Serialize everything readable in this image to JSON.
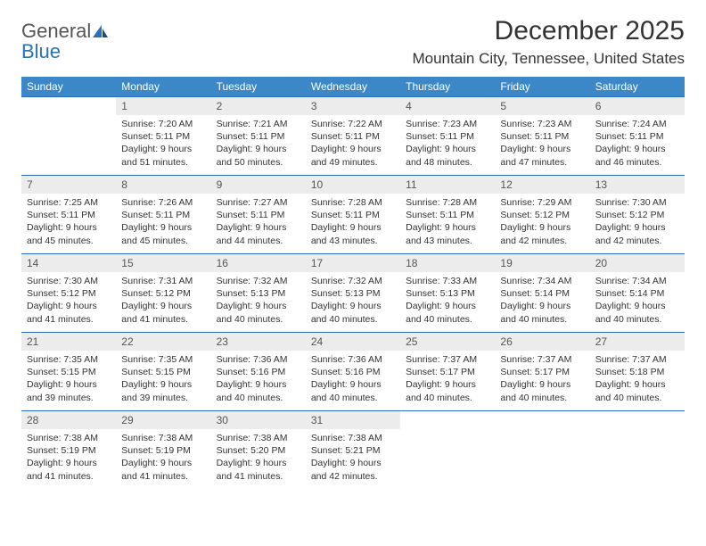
{
  "logo": {
    "text_gray": "General",
    "text_blue": "Blue"
  },
  "title": "December 2025",
  "location": "Mountain City, Tennessee, United States",
  "colors": {
    "header_bg": "#3b87c8",
    "daynum_bg": "#ececec",
    "border": "#2970b8",
    "logo_blue": "#2970b8"
  },
  "day_headers": [
    "Sunday",
    "Monday",
    "Tuesday",
    "Wednesday",
    "Thursday",
    "Friday",
    "Saturday"
  ],
  "weeks": [
    [
      {
        "n": "",
        "sunrise": "",
        "sunset": "",
        "daylight": ""
      },
      {
        "n": "1",
        "sunrise": "Sunrise: 7:20 AM",
        "sunset": "Sunset: 5:11 PM",
        "daylight": "Daylight: 9 hours and 51 minutes."
      },
      {
        "n": "2",
        "sunrise": "Sunrise: 7:21 AM",
        "sunset": "Sunset: 5:11 PM",
        "daylight": "Daylight: 9 hours and 50 minutes."
      },
      {
        "n": "3",
        "sunrise": "Sunrise: 7:22 AM",
        "sunset": "Sunset: 5:11 PM",
        "daylight": "Daylight: 9 hours and 49 minutes."
      },
      {
        "n": "4",
        "sunrise": "Sunrise: 7:23 AM",
        "sunset": "Sunset: 5:11 PM",
        "daylight": "Daylight: 9 hours and 48 minutes."
      },
      {
        "n": "5",
        "sunrise": "Sunrise: 7:23 AM",
        "sunset": "Sunset: 5:11 PM",
        "daylight": "Daylight: 9 hours and 47 minutes."
      },
      {
        "n": "6",
        "sunrise": "Sunrise: 7:24 AM",
        "sunset": "Sunset: 5:11 PM",
        "daylight": "Daylight: 9 hours and 46 minutes."
      }
    ],
    [
      {
        "n": "7",
        "sunrise": "Sunrise: 7:25 AM",
        "sunset": "Sunset: 5:11 PM",
        "daylight": "Daylight: 9 hours and 45 minutes."
      },
      {
        "n": "8",
        "sunrise": "Sunrise: 7:26 AM",
        "sunset": "Sunset: 5:11 PM",
        "daylight": "Daylight: 9 hours and 45 minutes."
      },
      {
        "n": "9",
        "sunrise": "Sunrise: 7:27 AM",
        "sunset": "Sunset: 5:11 PM",
        "daylight": "Daylight: 9 hours and 44 minutes."
      },
      {
        "n": "10",
        "sunrise": "Sunrise: 7:28 AM",
        "sunset": "Sunset: 5:11 PM",
        "daylight": "Daylight: 9 hours and 43 minutes."
      },
      {
        "n": "11",
        "sunrise": "Sunrise: 7:28 AM",
        "sunset": "Sunset: 5:11 PM",
        "daylight": "Daylight: 9 hours and 43 minutes."
      },
      {
        "n": "12",
        "sunrise": "Sunrise: 7:29 AM",
        "sunset": "Sunset: 5:12 PM",
        "daylight": "Daylight: 9 hours and 42 minutes."
      },
      {
        "n": "13",
        "sunrise": "Sunrise: 7:30 AM",
        "sunset": "Sunset: 5:12 PM",
        "daylight": "Daylight: 9 hours and 42 minutes."
      }
    ],
    [
      {
        "n": "14",
        "sunrise": "Sunrise: 7:30 AM",
        "sunset": "Sunset: 5:12 PM",
        "daylight": "Daylight: 9 hours and 41 minutes."
      },
      {
        "n": "15",
        "sunrise": "Sunrise: 7:31 AM",
        "sunset": "Sunset: 5:12 PM",
        "daylight": "Daylight: 9 hours and 41 minutes."
      },
      {
        "n": "16",
        "sunrise": "Sunrise: 7:32 AM",
        "sunset": "Sunset: 5:13 PM",
        "daylight": "Daylight: 9 hours and 40 minutes."
      },
      {
        "n": "17",
        "sunrise": "Sunrise: 7:32 AM",
        "sunset": "Sunset: 5:13 PM",
        "daylight": "Daylight: 9 hours and 40 minutes."
      },
      {
        "n": "18",
        "sunrise": "Sunrise: 7:33 AM",
        "sunset": "Sunset: 5:13 PM",
        "daylight": "Daylight: 9 hours and 40 minutes."
      },
      {
        "n": "19",
        "sunrise": "Sunrise: 7:34 AM",
        "sunset": "Sunset: 5:14 PM",
        "daylight": "Daylight: 9 hours and 40 minutes."
      },
      {
        "n": "20",
        "sunrise": "Sunrise: 7:34 AM",
        "sunset": "Sunset: 5:14 PM",
        "daylight": "Daylight: 9 hours and 40 minutes."
      }
    ],
    [
      {
        "n": "21",
        "sunrise": "Sunrise: 7:35 AM",
        "sunset": "Sunset: 5:15 PM",
        "daylight": "Daylight: 9 hours and 39 minutes."
      },
      {
        "n": "22",
        "sunrise": "Sunrise: 7:35 AM",
        "sunset": "Sunset: 5:15 PM",
        "daylight": "Daylight: 9 hours and 39 minutes."
      },
      {
        "n": "23",
        "sunrise": "Sunrise: 7:36 AM",
        "sunset": "Sunset: 5:16 PM",
        "daylight": "Daylight: 9 hours and 40 minutes."
      },
      {
        "n": "24",
        "sunrise": "Sunrise: 7:36 AM",
        "sunset": "Sunset: 5:16 PM",
        "daylight": "Daylight: 9 hours and 40 minutes."
      },
      {
        "n": "25",
        "sunrise": "Sunrise: 7:37 AM",
        "sunset": "Sunset: 5:17 PM",
        "daylight": "Daylight: 9 hours and 40 minutes."
      },
      {
        "n": "26",
        "sunrise": "Sunrise: 7:37 AM",
        "sunset": "Sunset: 5:17 PM",
        "daylight": "Daylight: 9 hours and 40 minutes."
      },
      {
        "n": "27",
        "sunrise": "Sunrise: 7:37 AM",
        "sunset": "Sunset: 5:18 PM",
        "daylight": "Daylight: 9 hours and 40 minutes."
      }
    ],
    [
      {
        "n": "28",
        "sunrise": "Sunrise: 7:38 AM",
        "sunset": "Sunset: 5:19 PM",
        "daylight": "Daylight: 9 hours and 41 minutes."
      },
      {
        "n": "29",
        "sunrise": "Sunrise: 7:38 AM",
        "sunset": "Sunset: 5:19 PM",
        "daylight": "Daylight: 9 hours and 41 minutes."
      },
      {
        "n": "30",
        "sunrise": "Sunrise: 7:38 AM",
        "sunset": "Sunset: 5:20 PM",
        "daylight": "Daylight: 9 hours and 41 minutes."
      },
      {
        "n": "31",
        "sunrise": "Sunrise: 7:38 AM",
        "sunset": "Sunset: 5:21 PM",
        "daylight": "Daylight: 9 hours and 42 minutes."
      },
      {
        "n": "",
        "sunrise": "",
        "sunset": "",
        "daylight": ""
      },
      {
        "n": "",
        "sunrise": "",
        "sunset": "",
        "daylight": ""
      },
      {
        "n": "",
        "sunrise": "",
        "sunset": "",
        "daylight": ""
      }
    ]
  ]
}
